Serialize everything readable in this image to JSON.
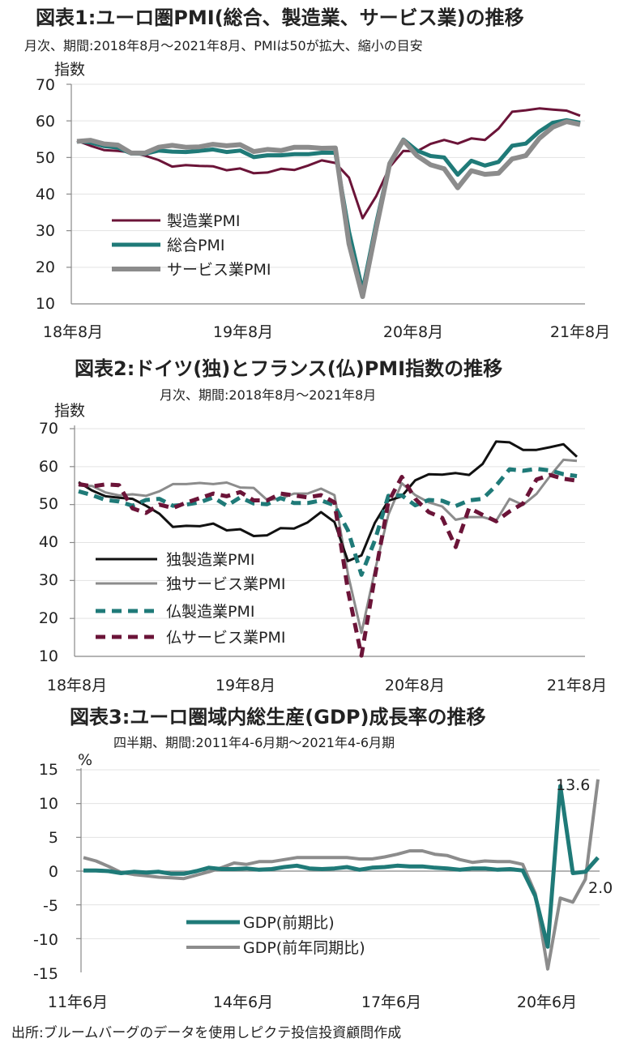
{
  "charts": [
    {
      "title": "図表1:ユーロ圏PMI(総合、製造業、サービス業)の推移",
      "subtitle": "月次、期間:2018年8月～2021年8月、PMIは50が拡大、縮小の目安",
      "ylabel": "指数",
      "yticks": [
        "70",
        "60",
        "50",
        "40",
        "30",
        "20",
        "10"
      ],
      "xticks": [
        "18年8月",
        "19年8月",
        "20年8月",
        "21年8月"
      ],
      "legend": [
        "製造業PMI",
        "総合PMI",
        "サービス業PMI"
      ]
    },
    {
      "title": "図表2:ドイツ(独)とフランス(仏)PMI指数の推移",
      "subtitle": "月次、期間:2018年8月～2021年8月",
      "ylabel": "指数",
      "yticks": [
        "70",
        "60",
        "50",
        "40",
        "30",
        "20",
        "10"
      ],
      "xticks": [
        "18年8月",
        "19年8月",
        "20年8月",
        "21年8月"
      ],
      "legend": [
        "独製造業PMI",
        "独サービス業PMI",
        "仏製造業PMI",
        "仏サービス業PMI"
      ]
    },
    {
      "title": "図表3:ユーロ圏域内総生産(GDP)成長率の推移",
      "subtitle": "四半期、期間:2011年4-6月期～2021年4-6月期",
      "ylabel": "%",
      "yticks": [
        "15",
        "10",
        "5",
        "0",
        "-5",
        "-10",
        "-15"
      ],
      "xticks": [
        "11年6月",
        "14年6月",
        "17年6月",
        "20年6月"
      ],
      "legend": [
        "GDP(前期比)",
        "GDP(前年同期比)"
      ],
      "annotations": {
        "yoy_last": "13.6",
        "qoq_last": "2.0"
      }
    }
  ],
  "source": "出所:ブルームバーグのデータを使用しピクテ投信投資顧問作成",
  "colors": {
    "manufacturing": "#6b1438",
    "composite": "#1f7a78",
    "services": "#8c8c8c",
    "de_mfg": "#111111",
    "de_svc": "#8c8c8c",
    "fr_mfg": "#1f7a78",
    "fr_svc": "#6b1438",
    "gdp_qoq": "#1f7a78",
    "gdp_yoy": "#8c8c8c"
  },
  "chart_data": [
    {
      "type": "line",
      "title": "図表1:ユーロ圏PMI(総合、製造業、サービス業)の推移",
      "xlabel": "",
      "ylabel": "指数",
      "x_start": "2018-08",
      "ylim": [
        10,
        70
      ],
      "series": [
        {
          "name": "製造業PMI",
          "values": [
            54.6,
            53.2,
            52.0,
            51.8,
            51.4,
            50.5,
            49.3,
            47.5,
            47.9,
            47.7,
            47.6,
            46.5,
            47.0,
            45.7,
            45.9,
            46.9,
            46.6,
            47.8,
            49.2,
            48.5,
            44.5,
            33.4,
            39.4,
            47.4,
            51.8,
            51.7,
            53.7,
            54.8,
            53.8,
            55.2,
            54.8,
            57.9,
            62.5,
            62.9,
            63.4,
            63.1,
            62.8,
            61.4
          ]
        },
        {
          "name": "総合PMI",
          "values": [
            54.5,
            54.1,
            53.1,
            52.7,
            51.1,
            51.0,
            51.9,
            51.6,
            51.5,
            51.8,
            52.2,
            51.5,
            51.9,
            50.1,
            50.6,
            50.6,
            50.9,
            50.9,
            51.3,
            51.3,
            29.7,
            13.6,
            31.9,
            48.5,
            54.9,
            51.9,
            50.4,
            50.0,
            45.3,
            49.1,
            47.8,
            48.8,
            53.2,
            53.8,
            57.1,
            59.5,
            60.2,
            59.5
          ]
        },
        {
          "name": "サービス業PMI",
          "values": [
            54.4,
            54.7,
            53.7,
            53.4,
            51.2,
            51.2,
            52.8,
            53.3,
            52.8,
            52.9,
            53.6,
            53.2,
            53.5,
            51.6,
            52.2,
            51.9,
            52.8,
            52.8,
            52.5,
            52.6,
            26.4,
            12.0,
            30.5,
            48.3,
            54.7,
            50.5,
            48.0,
            46.9,
            41.7,
            46.4,
            45.4,
            45.7,
            49.6,
            50.5,
            55.2,
            58.3,
            59.8,
            59.0
          ]
        }
      ]
    },
    {
      "type": "line",
      "title": "図表2:ドイツ(独)とフランス(仏)PMI指数の推移",
      "xlabel": "",
      "ylabel": "指数",
      "x_start": "2018-08",
      "ylim": [
        10,
        70
      ],
      "series": [
        {
          "name": "独製造業PMI",
          "values": [
            55.9,
            53.7,
            52.2,
            51.8,
            51.5,
            49.7,
            47.6,
            44.1,
            44.4,
            44.3,
            45.0,
            43.2,
            43.5,
            41.7,
            41.9,
            43.8,
            43.7,
            45.3,
            48.0,
            45.4,
            35.1,
            36.6,
            45.2,
            51.0,
            52.2,
            56.4,
            58.0,
            57.9,
            58.3,
            57.8,
            60.7,
            66.6,
            66.4,
            64.4,
            64.4,
            65.1,
            65.9,
            62.6
          ]
        },
        {
          "name": "独サービス業PMI",
          "values": [
            55.0,
            54.9,
            53.2,
            52.4,
            52.7,
            52.3,
            53.5,
            55.4,
            55.4,
            55.7,
            55.4,
            55.8,
            54.5,
            54.4,
            51.2,
            51.6,
            52.9,
            52.9,
            54.2,
            52.5,
            31.7,
            16.2,
            32.6,
            47.3,
            55.6,
            52.5,
            50.6,
            49.5,
            46.0,
            46.7,
            46.7,
            45.7,
            51.5,
            49.9,
            52.8,
            57.5,
            61.8,
            61.5
          ]
        },
        {
          "name": "仏製造業PMI",
          "values": [
            53.5,
            52.5,
            51.2,
            50.8,
            49.7,
            51.2,
            51.5,
            49.7,
            50.0,
            50.6,
            51.9,
            49.7,
            51.9,
            50.3,
            50.1,
            51.7,
            50.4,
            50.4,
            51.1,
            49.8,
            43.2,
            31.5,
            40.6,
            52.3,
            52.4,
            49.8,
            51.2,
            51.0,
            49.6,
            51.1,
            51.5,
            55.0,
            59.3,
            58.9,
            59.4,
            59.0,
            58.0,
            57.5
          ]
        },
        {
          "name": "仏サービス業PMI",
          "values": [
            55.4,
            54.8,
            55.3,
            55.1,
            49.0,
            47.8,
            50.0,
            49.1,
            50.5,
            51.7,
            52.9,
            52.2,
            53.3,
            51.1,
            51.1,
            52.9,
            52.4,
            51.9,
            52.5,
            50.6,
            27.4,
            10.2,
            31.1,
            50.7,
            57.3,
            51.5,
            48.0,
            46.5,
            38.8,
            49.1,
            47.3,
            45.6,
            48.2,
            50.3,
            56.6,
            57.8,
            56.8,
            56.3
          ]
        }
      ]
    },
    {
      "type": "line",
      "title": "図表3:ユーロ圏域内総生産(GDP)成長率の推移",
      "xlabel": "",
      "ylabel": "%",
      "x_start": "2011-06",
      "ylim": [
        -15,
        15
      ],
      "series": [
        {
          "name": "GDP(前期比)",
          "values": [
            0.1,
            0.1,
            0.0,
            -0.3,
            -0.1,
            -0.2,
            -0.1,
            -0.4,
            -0.4,
            0.0,
            0.5,
            0.3,
            0.3,
            0.4,
            0.2,
            0.3,
            0.6,
            0.8,
            0.4,
            0.3,
            0.4,
            0.6,
            0.2,
            0.5,
            0.6,
            0.8,
            0.7,
            0.7,
            0.5,
            0.4,
            0.2,
            0.4,
            0.4,
            0.2,
            0.3,
            0.1,
            -3.7,
            -11.2,
            12.6,
            -0.3,
            -0.1,
            2.0
          ]
        },
        {
          "name": "GDP(前年同期比)",
          "values": [
            2.0,
            1.5,
            0.7,
            -0.2,
            -0.5,
            -0.7,
            -0.9,
            -1.0,
            -1.1,
            -0.6,
            -0.1,
            0.5,
            1.2,
            1.0,
            1.4,
            1.4,
            1.7,
            2.0,
            2.0,
            2.0,
            2.0,
            2.0,
            1.8,
            1.8,
            2.1,
            2.5,
            3.0,
            3.0,
            2.5,
            2.3,
            1.7,
            1.3,
            1.5,
            1.4,
            1.4,
            1.0,
            -3.3,
            -14.5,
            -4.0,
            -4.6,
            -1.2,
            13.6
          ]
        }
      ]
    }
  ]
}
